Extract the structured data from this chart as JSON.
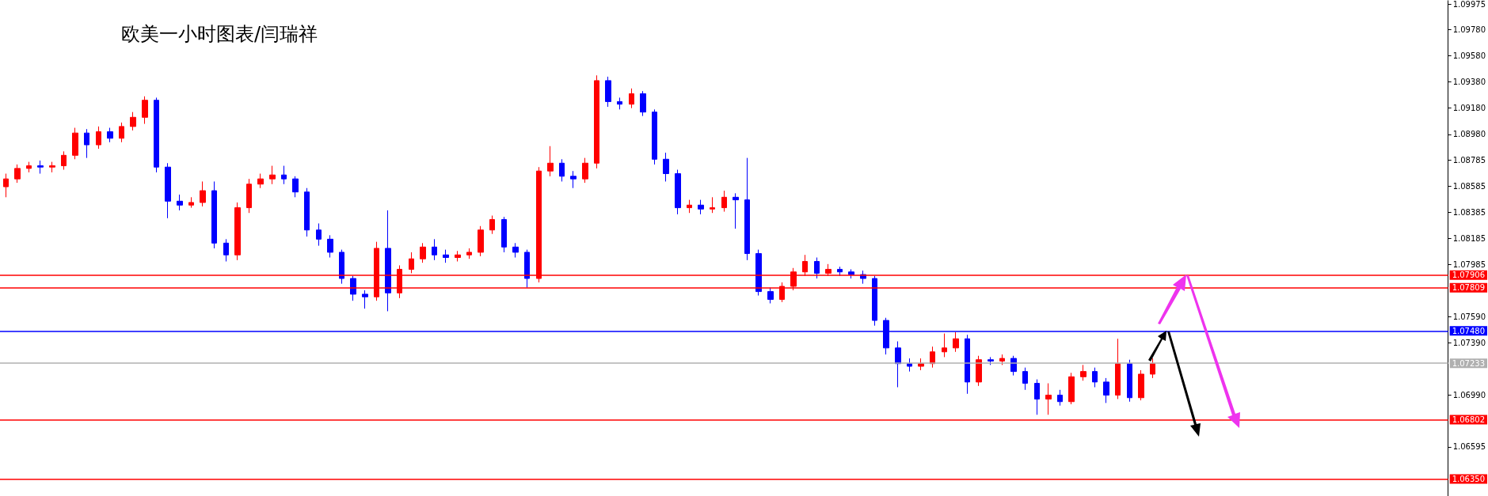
{
  "chart_data": {
    "type": "candlestick",
    "title": "欧美一小时图表/闫瑞祥",
    "categories": [
      null,
      null,
      null,
      null,
      null,
      null,
      null,
      null,
      null,
      null,
      null,
      null,
      null,
      null,
      null,
      null,
      null,
      null,
      null,
      null,
      null,
      null,
      null,
      null,
      null,
      null,
      null,
      null,
      null,
      null,
      null,
      null,
      null,
      null,
      null,
      null,
      null,
      null,
      null,
      null,
      null,
      null,
      null,
      null,
      null,
      null,
      null,
      null,
      null,
      null,
      null,
      null,
      null,
      null,
      null,
      null,
      null,
      null,
      null,
      null,
      null,
      null,
      null,
      null,
      null,
      null,
      null,
      null,
      null,
      null,
      null,
      null,
      null,
      null,
      null,
      null,
      null,
      null,
      null,
      null,
      null,
      null,
      null,
      null,
      null,
      null,
      null,
      null,
      null,
      null,
      null,
      null,
      null,
      null,
      null,
      null,
      null,
      null,
      null,
      null,
      null,
      null,
      null,
      null,
      null,
      null,
      null,
      null,
      null,
      null,
      null,
      null,
      null,
      null,
      null,
      null,
      null,
      null,
      null,
      null,
      null,
      null,
      null,
      null,
      null
    ],
    "ohlc": [
      [
        1.0858,
        1.0868,
        1.085,
        1.0864
      ],
      [
        1.0864,
        1.0875,
        1.0861,
        1.0872
      ],
      [
        1.0872,
        1.0877,
        1.0869,
        1.0874
      ],
      [
        1.0874,
        1.0878,
        1.0868,
        1.0873
      ],
      [
        1.0873,
        1.0877,
        1.0869,
        1.0874
      ],
      [
        1.0874,
        1.0885,
        1.0871,
        1.0882
      ],
      [
        1.0882,
        1.0903,
        1.0879,
        1.0899
      ],
      [
        1.0899,
        1.0902,
        1.088,
        1.089
      ],
      [
        1.089,
        1.0904,
        1.0887,
        1.09
      ],
      [
        1.09,
        1.0903,
        1.0892,
        1.0895
      ],
      [
        1.0895,
        1.0907,
        1.0892,
        1.0904
      ],
      [
        1.0904,
        1.0915,
        1.0901,
        1.0911
      ],
      [
        1.0911,
        1.0927,
        1.0906,
        1.0924
      ],
      [
        1.0924,
        1.0926,
        1.0869,
        1.0873
      ],
      [
        1.0873,
        1.0876,
        1.0834,
        1.0847
      ],
      [
        1.0847,
        1.0852,
        1.084,
        1.0844
      ],
      [
        1.0844,
        1.085,
        1.0842,
        1.0846
      ],
      [
        1.0846,
        1.0862,
        1.0843,
        1.0855
      ],
      [
        1.0855,
        1.0862,
        1.0811,
        1.0815
      ],
      [
        1.0815,
        1.0818,
        1.0801,
        1.0806
      ],
      [
        1.0806,
        1.0846,
        1.0802,
        1.0842
      ],
      [
        1.0842,
        1.0864,
        1.0838,
        1.086
      ],
      [
        1.086,
        1.0868,
        1.0857,
        1.0864
      ],
      [
        1.0864,
        1.0874,
        1.086,
        1.0867
      ],
      [
        1.0867,
        1.0874,
        1.086,
        1.0864
      ],
      [
        1.0864,
        1.0866,
        1.085,
        1.0854
      ],
      [
        1.0854,
        1.0857,
        1.082,
        1.0825
      ],
      [
        1.0825,
        1.083,
        1.0813,
        1.0818
      ],
      [
        1.0818,
        1.0821,
        1.0804,
        1.0808
      ],
      [
        1.0808,
        1.081,
        1.0784,
        1.0788
      ],
      [
        1.0788,
        1.079,
        1.0771,
        1.0776
      ],
      [
        1.0776,
        1.0779,
        1.0765,
        1.0774
      ],
      [
        1.0774,
        1.0816,
        1.0771,
        1.0811
      ],
      [
        1.0811,
        1.084,
        1.0763,
        1.0777
      ],
      [
        1.0777,
        1.0798,
        1.0773,
        1.0795
      ],
      [
        1.0795,
        1.0808,
        1.0792,
        1.0803
      ],
      [
        1.0803,
        1.0815,
        1.08,
        1.0812
      ],
      [
        1.0812,
        1.0818,
        1.0802,
        1.0806
      ],
      [
        1.0806,
        1.081,
        1.08,
        1.0804
      ],
      [
        1.0804,
        1.0809,
        1.0801,
        1.0806
      ],
      [
        1.0806,
        1.0811,
        1.0803,
        1.0808
      ],
      [
        1.0808,
        1.0828,
        1.0805,
        1.0825
      ],
      [
        1.0825,
        1.0836,
        1.0822,
        1.0833
      ],
      [
        1.0833,
        1.0835,
        1.0808,
        1.0812
      ],
      [
        1.0812,
        1.0815,
        1.0804,
        1.0808
      ],
      [
        1.0808,
        1.081,
        1.0781,
        1.0788
      ],
      [
        1.0788,
        1.0873,
        1.0785,
        1.087
      ],
      [
        1.087,
        1.0889,
        1.0866,
        1.0876
      ],
      [
        1.0876,
        1.0879,
        1.0862,
        1.0866
      ],
      [
        1.0866,
        1.087,
        1.0857,
        1.0864
      ],
      [
        1.0864,
        1.088,
        1.0861,
        1.0876
      ],
      [
        1.0876,
        1.0943,
        1.0872,
        1.0939
      ],
      [
        1.0939,
        1.0942,
        1.0919,
        1.0923
      ],
      [
        1.0923,
        1.0926,
        1.0917,
        1.0921
      ],
      [
        1.0921,
        1.0933,
        1.0918,
        1.0929
      ],
      [
        1.0929,
        1.0931,
        1.0912,
        1.0915
      ],
      [
        1.0915,
        1.0917,
        1.0875,
        1.0879
      ],
      [
        1.0879,
        1.0884,
        1.0862,
        1.0868
      ],
      [
        1.0868,
        1.0871,
        1.0837,
        1.0842
      ],
      [
        1.0842,
        1.0848,
        1.0838,
        1.0844
      ],
      [
        1.0844,
        1.0848,
        1.0837,
        1.0841
      ],
      [
        1.0841,
        1.085,
        1.0838,
        1.0842
      ],
      [
        1.0842,
        1.0855,
        1.0839,
        1.085
      ],
      [
        1.085,
        1.0853,
        1.0826,
        1.0848
      ],
      [
        1.0848,
        1.088,
        1.0802,
        1.0807
      ],
      [
        1.0807,
        1.081,
        1.0775,
        1.0778
      ],
      [
        1.0778,
        1.0781,
        1.0769,
        1.0772
      ],
      [
        1.0772,
        1.0785,
        1.077,
        1.0782
      ],
      [
        1.0782,
        1.0796,
        1.0779,
        1.0793
      ],
      [
        1.0793,
        1.0806,
        1.079,
        1.0801
      ],
      [
        1.0801,
        1.0804,
        1.0788,
        1.0792
      ],
      [
        1.0792,
        1.0799,
        1.079,
        1.0795
      ],
      [
        1.0795,
        1.0797,
        1.079,
        1.0793
      ],
      [
        1.0793,
        1.0795,
        1.0788,
        1.0791
      ],
      [
        1.0791,
        1.0794,
        1.0784,
        1.0788
      ],
      [
        1.0788,
        1.079,
        1.0752,
        1.0756
      ],
      [
        1.0756,
        1.0758,
        1.073,
        1.0735
      ],
      [
        1.0735,
        1.074,
        1.0705,
        1.0723
      ],
      [
        1.0723,
        1.0727,
        1.0717,
        1.0721
      ],
      [
        1.0721,
        1.0727,
        1.0718,
        1.0723
      ],
      [
        1.0723,
        1.0736,
        1.072,
        1.0732
      ],
      [
        1.0732,
        1.0746,
        1.0728,
        1.0735
      ],
      [
        1.0735,
        1.0747,
        1.0732,
        1.0742
      ],
      [
        1.0742,
        1.0745,
        1.07,
        1.0709
      ],
      [
        1.0709,
        1.0729,
        1.0706,
        1.0726
      ],
      [
        1.0726,
        1.0728,
        1.0722,
        1.0725
      ],
      [
        1.0725,
        1.073,
        1.0722,
        1.0727
      ],
      [
        1.0727,
        1.0729,
        1.0714,
        1.0717
      ],
      [
        1.0717,
        1.072,
        1.0703,
        1.0708
      ],
      [
        1.0708,
        1.0711,
        1.0684,
        1.0696
      ],
      [
        1.0696,
        1.0708,
        1.0684,
        1.0699
      ],
      [
        1.0699,
        1.0703,
        1.0691,
        1.0694
      ],
      [
        1.0694,
        1.0716,
        1.0692,
        1.0713
      ],
      [
        1.0713,
        1.0722,
        1.071,
        1.0717
      ],
      [
        1.0717,
        1.072,
        1.0705,
        1.0709
      ],
      [
        1.0709,
        1.0712,
        1.0693,
        1.0699
      ],
      [
        1.0699,
        1.0742,
        1.0696,
        1.0723
      ],
      [
        1.0723,
        1.0726,
        1.0694,
        1.0697
      ],
      [
        1.0697,
        1.0718,
        1.0695,
        1.0715
      ],
      [
        1.0715,
        1.0727,
        1.0712,
        1.0723
      ],
      null,
      null,
      null,
      null,
      null,
      null,
      null,
      null,
      null,
      null,
      null,
      null,
      null,
      null,
      null,
      null,
      null,
      null,
      null,
      null,
      null,
      null,
      null,
      null,
      null
    ],
    "colors": [
      "#ff0000",
      "#ff0000",
      "#ff0000",
      "#0000ff",
      "#ff0000",
      "#ff0000",
      "#ff0000",
      "#0000ff",
      "#ff0000",
      "#0000ff",
      "#ff0000",
      "#ff0000",
      "#ff0000",
      "#0000ff",
      "#0000ff",
      "#0000ff",
      "#ff0000",
      "#ff0000",
      "#0000ff",
      "#0000ff",
      "#ff0000",
      "#ff0000",
      "#ff0000",
      "#ff0000",
      "#0000ff",
      "#0000ff",
      "#0000ff",
      "#0000ff",
      "#0000ff",
      "#0000ff",
      "#0000ff",
      "#0000ff",
      "#ff0000",
      "#0000ff",
      "#ff0000",
      "#ff0000",
      "#ff0000",
      "#0000ff",
      "#0000ff",
      "#ff0000",
      "#ff0000",
      "#ff0000",
      "#ff0000",
      "#0000ff",
      "#0000ff",
      "#0000ff",
      "#ff0000",
      "#ff0000",
      "#0000ff",
      "#0000ff",
      "#ff0000",
      "#ff0000",
      "#0000ff",
      "#0000ff",
      "#ff0000",
      "#0000ff",
      "#0000ff",
      "#0000ff",
      "#0000ff",
      "#ff0000",
      "#0000ff",
      "#ff0000",
      "#ff0000",
      "#0000ff",
      "#0000ff",
      "#0000ff",
      "#0000ff",
      "#ff0000",
      "#ff0000",
      "#ff0000",
      "#0000ff",
      "#ff0000",
      "#0000ff",
      "#0000ff",
      "#0000ff",
      "#0000ff",
      "#0000ff",
      "#0000ff",
      "#0000ff",
      "#ff0000",
      "#ff0000",
      "#ff0000",
      "#ff0000",
      "#0000ff",
      "#ff0000",
      "#0000ff",
      "#ff0000",
      "#0000ff",
      "#0000ff",
      "#0000ff",
      "#ff0000",
      "#0000ff",
      "#ff0000",
      "#ff0000",
      "#0000ff",
      "#0000ff",
      "#ff0000",
      "#0000ff",
      "#ff0000",
      "#ff0000",
      null,
      null,
      null,
      null,
      null,
      null,
      null,
      null,
      null,
      null,
      null,
      null,
      null,
      null,
      null,
      null,
      null,
      null,
      null,
      null,
      null,
      null,
      null,
      null,
      null
    ],
    "ylim": [
      1.0622,
      1.1
    ],
    "yticks": [
      {
        "value": 1.09975,
        "label": "1.09975"
      },
      {
        "value": 1.0978,
        "label": "1.09780"
      },
      {
        "value": 1.0958,
        "label": "1.09580"
      },
      {
        "value": 1.0938,
        "label": "1.09380"
      },
      {
        "value": 1.0918,
        "label": "1.09180"
      },
      {
        "value": 1.0898,
        "label": "1.08980"
      },
      {
        "value": 1.08785,
        "label": "1.08785"
      },
      {
        "value": 1.08585,
        "label": "1.08585"
      },
      {
        "value": 1.08385,
        "label": "1.08385"
      },
      {
        "value": 1.08185,
        "label": "1.08185"
      },
      {
        "value": 1.07985,
        "label": "1.07985"
      },
      {
        "value": 1.0759,
        "label": "1.07590"
      },
      {
        "value": 1.0739,
        "label": "1.07390"
      },
      {
        "value": 1.0699,
        "label": "1.06990"
      },
      {
        "value": 1.06595,
        "label": "1.06595"
      }
    ],
    "ref_lines": [
      {
        "axis": "y",
        "value": 1.07906,
        "label": "1.07906",
        "color": "#ff0000"
      },
      {
        "axis": "y",
        "value": 1.07809,
        "label": "1.07809",
        "color": "#ff0000"
      },
      {
        "axis": "y",
        "value": 1.0748,
        "label": "1.07480",
        "color": "#0000ff"
      },
      {
        "axis": "y",
        "value": 1.07233,
        "label": "1.07233",
        "color": "#b0b0b0"
      },
      {
        "axis": "y",
        "value": 1.06802,
        "label": "1.06802",
        "color": "#ff0000"
      },
      {
        "axis": "y",
        "value": 1.0635,
        "label": "1.06350",
        "color": "#ff0000"
      }
    ],
    "tick_labels": "y",
    "grid": false
  }
}
